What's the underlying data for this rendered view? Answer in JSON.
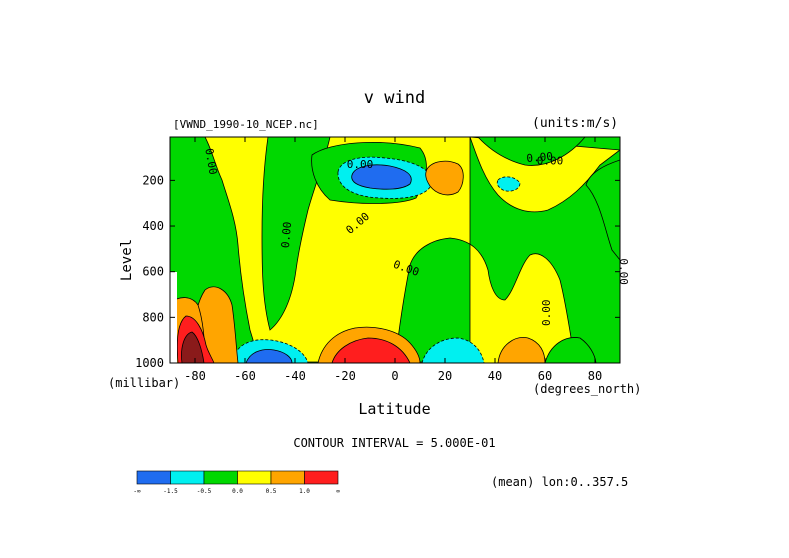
{
  "chart_data": {
    "type": "heatmap",
    "title": "v wind",
    "file_label": "[VWND_1990-10_NCEP.nc]",
    "units_label": "(units:m/s)",
    "xlabel": "Latitude",
    "x_units": "(degrees_north)",
    "ylabel": "Level",
    "y_units": "(millibar)",
    "contour_interval": "CONTOUR INTERVAL = 5.000E-01",
    "mean_label": "(mean) lon:0..357.5",
    "xlim": [
      -90,
      90
    ],
    "ylim": [
      1000,
      10
    ],
    "x_ticks": [
      "-80",
      "-60",
      "-40",
      "-20",
      "0",
      "20",
      "40",
      "60",
      "80"
    ],
    "y_ticks": [
      "200",
      "400",
      "600",
      "800",
      "1000"
    ],
    "contour_labels": [
      "0.00",
      "0.00",
      "0.00",
      "0.00",
      "0.00",
      "0.00",
      "0.00",
      "0.00",
      "0.00"
    ],
    "colorbar": {
      "colors": [
        "#1f6cf0",
        "#00f0f0",
        "#00d800",
        "#ffff00",
        "#ffa500",
        "#ff1e1e"
      ],
      "labels": [
        "-∞",
        "-1.5",
        "-0.5",
        "0.0",
        "0.5",
        "1.0",
        "∞"
      ]
    },
    "features": [
      {
        "type": "min",
        "lat": -10,
        "level": 180,
        "category": "strong negative",
        "value_range": "< -1.5"
      },
      {
        "type": "max",
        "lat": 12,
        "level": 150,
        "category": "positive",
        "value_range": "0.5 to 1.0"
      },
      {
        "type": "min",
        "lat": 48,
        "level": 200,
        "category": "negative",
        "value_range": "-1.5 to -0.5"
      },
      {
        "type": "max",
        "lat": -8,
        "level": 960,
        "category": "strong positive",
        "value_range": "> 1.0"
      },
      {
        "type": "min",
        "lat": -56,
        "level": 970,
        "category": "strong negative",
        "value_range": "< -1.5"
      },
      {
        "type": "max",
        "lat": -82,
        "level": 860,
        "category": "strong positive",
        "value_range": "> 1.0"
      },
      {
        "type": "min",
        "lat": 22,
        "level": 960,
        "category": "negative",
        "value_range": "-1.5 to -0.5"
      },
      {
        "type": "max",
        "lat": 52,
        "level": 970,
        "category": "positive",
        "value_range": "0.5 to 1.0"
      }
    ]
  }
}
